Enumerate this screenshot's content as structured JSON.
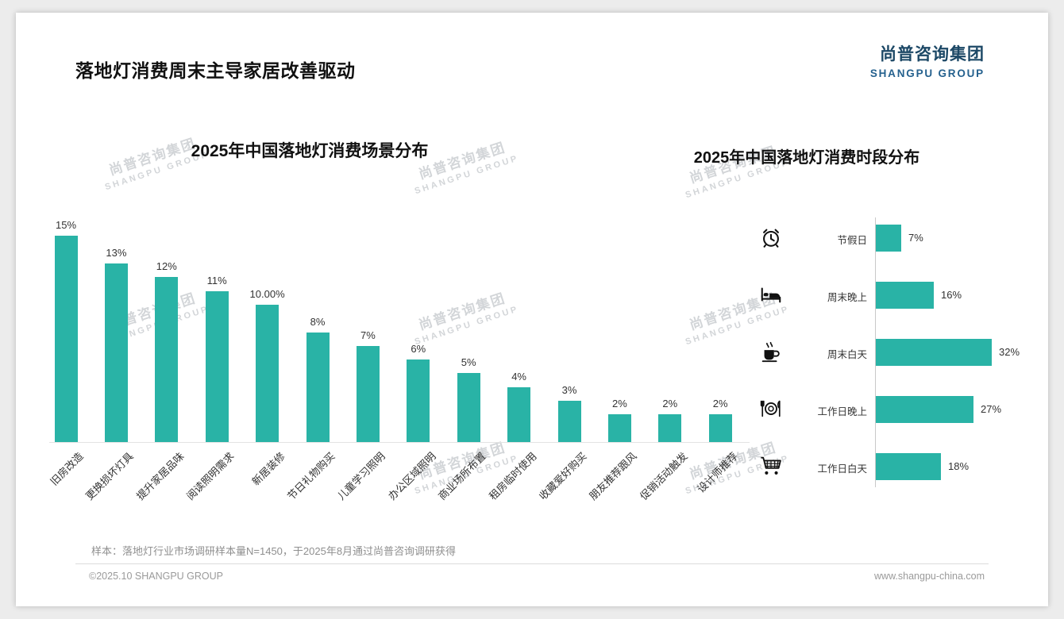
{
  "page": {
    "title": "落地灯消费周末主导家居改善驱动",
    "logo": {
      "cn": "尚普咨询集团",
      "en": "SHANGPU GROUP"
    },
    "footer_note": "样本：落地灯行业市场调研样本量N=1450，于2025年8月通过尚普咨询调研获得",
    "footer_left": "©2025.10 SHANGPU GROUP",
    "footer_right": "www.shangpu-china.com"
  },
  "watermark": {
    "line1": "尚普咨询集团",
    "line2": "SHANGPU GROUP"
  },
  "colors": {
    "bar": "#29B3A6",
    "logo": "#1C4866",
    "title": "#111111",
    "muted": "#9A9A9A"
  },
  "chart_data": [
    {
      "type": "bar",
      "orientation": "vertical",
      "title": "2025年中国落地灯消费场景分布",
      "categories": [
        "旧房改造",
        "更换损坏灯具",
        "提升家居品味",
        "阅读照明需求",
        "新居装修",
        "节日礼物购买",
        "儿童学习照明",
        "办公区域照明",
        "商业场所布置",
        "租房临时使用",
        "收藏爱好购买",
        "朋友推荐跟风",
        "促销活动触发",
        "设计师推荐"
      ],
      "values": [
        15,
        13,
        12,
        11,
        10,
        8,
        7,
        6,
        5,
        4,
        3,
        2,
        2,
        2
      ],
      "value_labels": [
        "15%",
        "13%",
        "12%",
        "11%",
        "10.00%",
        "8%",
        "7%",
        "6%",
        "5%",
        "4%",
        "3%",
        "2%",
        "2%",
        "2%"
      ],
      "unit": "%",
      "ylim": [
        0,
        16
      ],
      "grid": false,
      "legend": "none"
    },
    {
      "type": "bar",
      "orientation": "horizontal",
      "title": "2025年中国落地灯消费时段分布",
      "categories": [
        "节假日",
        "周末晚上",
        "周末白天",
        "工作日晚上",
        "工作日白天"
      ],
      "values": [
        7,
        16,
        32,
        27,
        18
      ],
      "value_labels": [
        "7%",
        "16%",
        "32%",
        "27%",
        "18%"
      ],
      "icons": [
        "alarm-clock-icon",
        "bed-icon",
        "coffee-cup-icon",
        "dining-icon",
        "shopping-cart-icon"
      ],
      "unit": "%",
      "xlim": [
        0,
        35
      ],
      "grid": false,
      "legend": "none"
    }
  ]
}
